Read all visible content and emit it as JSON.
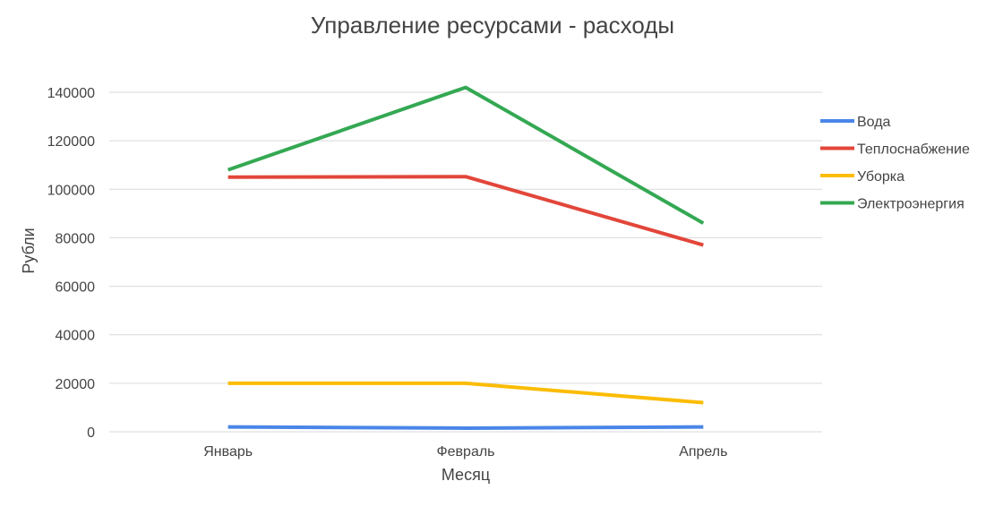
{
  "chart_data": {
    "type": "line",
    "title": "Управление ресурсами - расходы",
    "xlabel": "Месяц",
    "ylabel": "Рубли",
    "categories": [
      "Январь",
      "Февраль",
      "Апрель"
    ],
    "ylim": [
      0,
      140000
    ],
    "yticks": [
      0,
      20000,
      40000,
      60000,
      80000,
      100000,
      120000,
      140000
    ],
    "grid": true,
    "legend_position": "right",
    "series": [
      {
        "name": "Вода",
        "color": "#4a86e8",
        "values": [
          2000,
          1500,
          2000
        ]
      },
      {
        "name": "Теплоснабжение",
        "color": "#e2463a",
        "values": [
          105000,
          105200,
          77000
        ]
      },
      {
        "name": "Уборка",
        "color": "#fbbc04",
        "values": [
          20000,
          20000,
          12000
        ]
      },
      {
        "name": "Электроэнергия",
        "color": "#34a853",
        "values": [
          108000,
          142000,
          86000
        ]
      }
    ]
  }
}
